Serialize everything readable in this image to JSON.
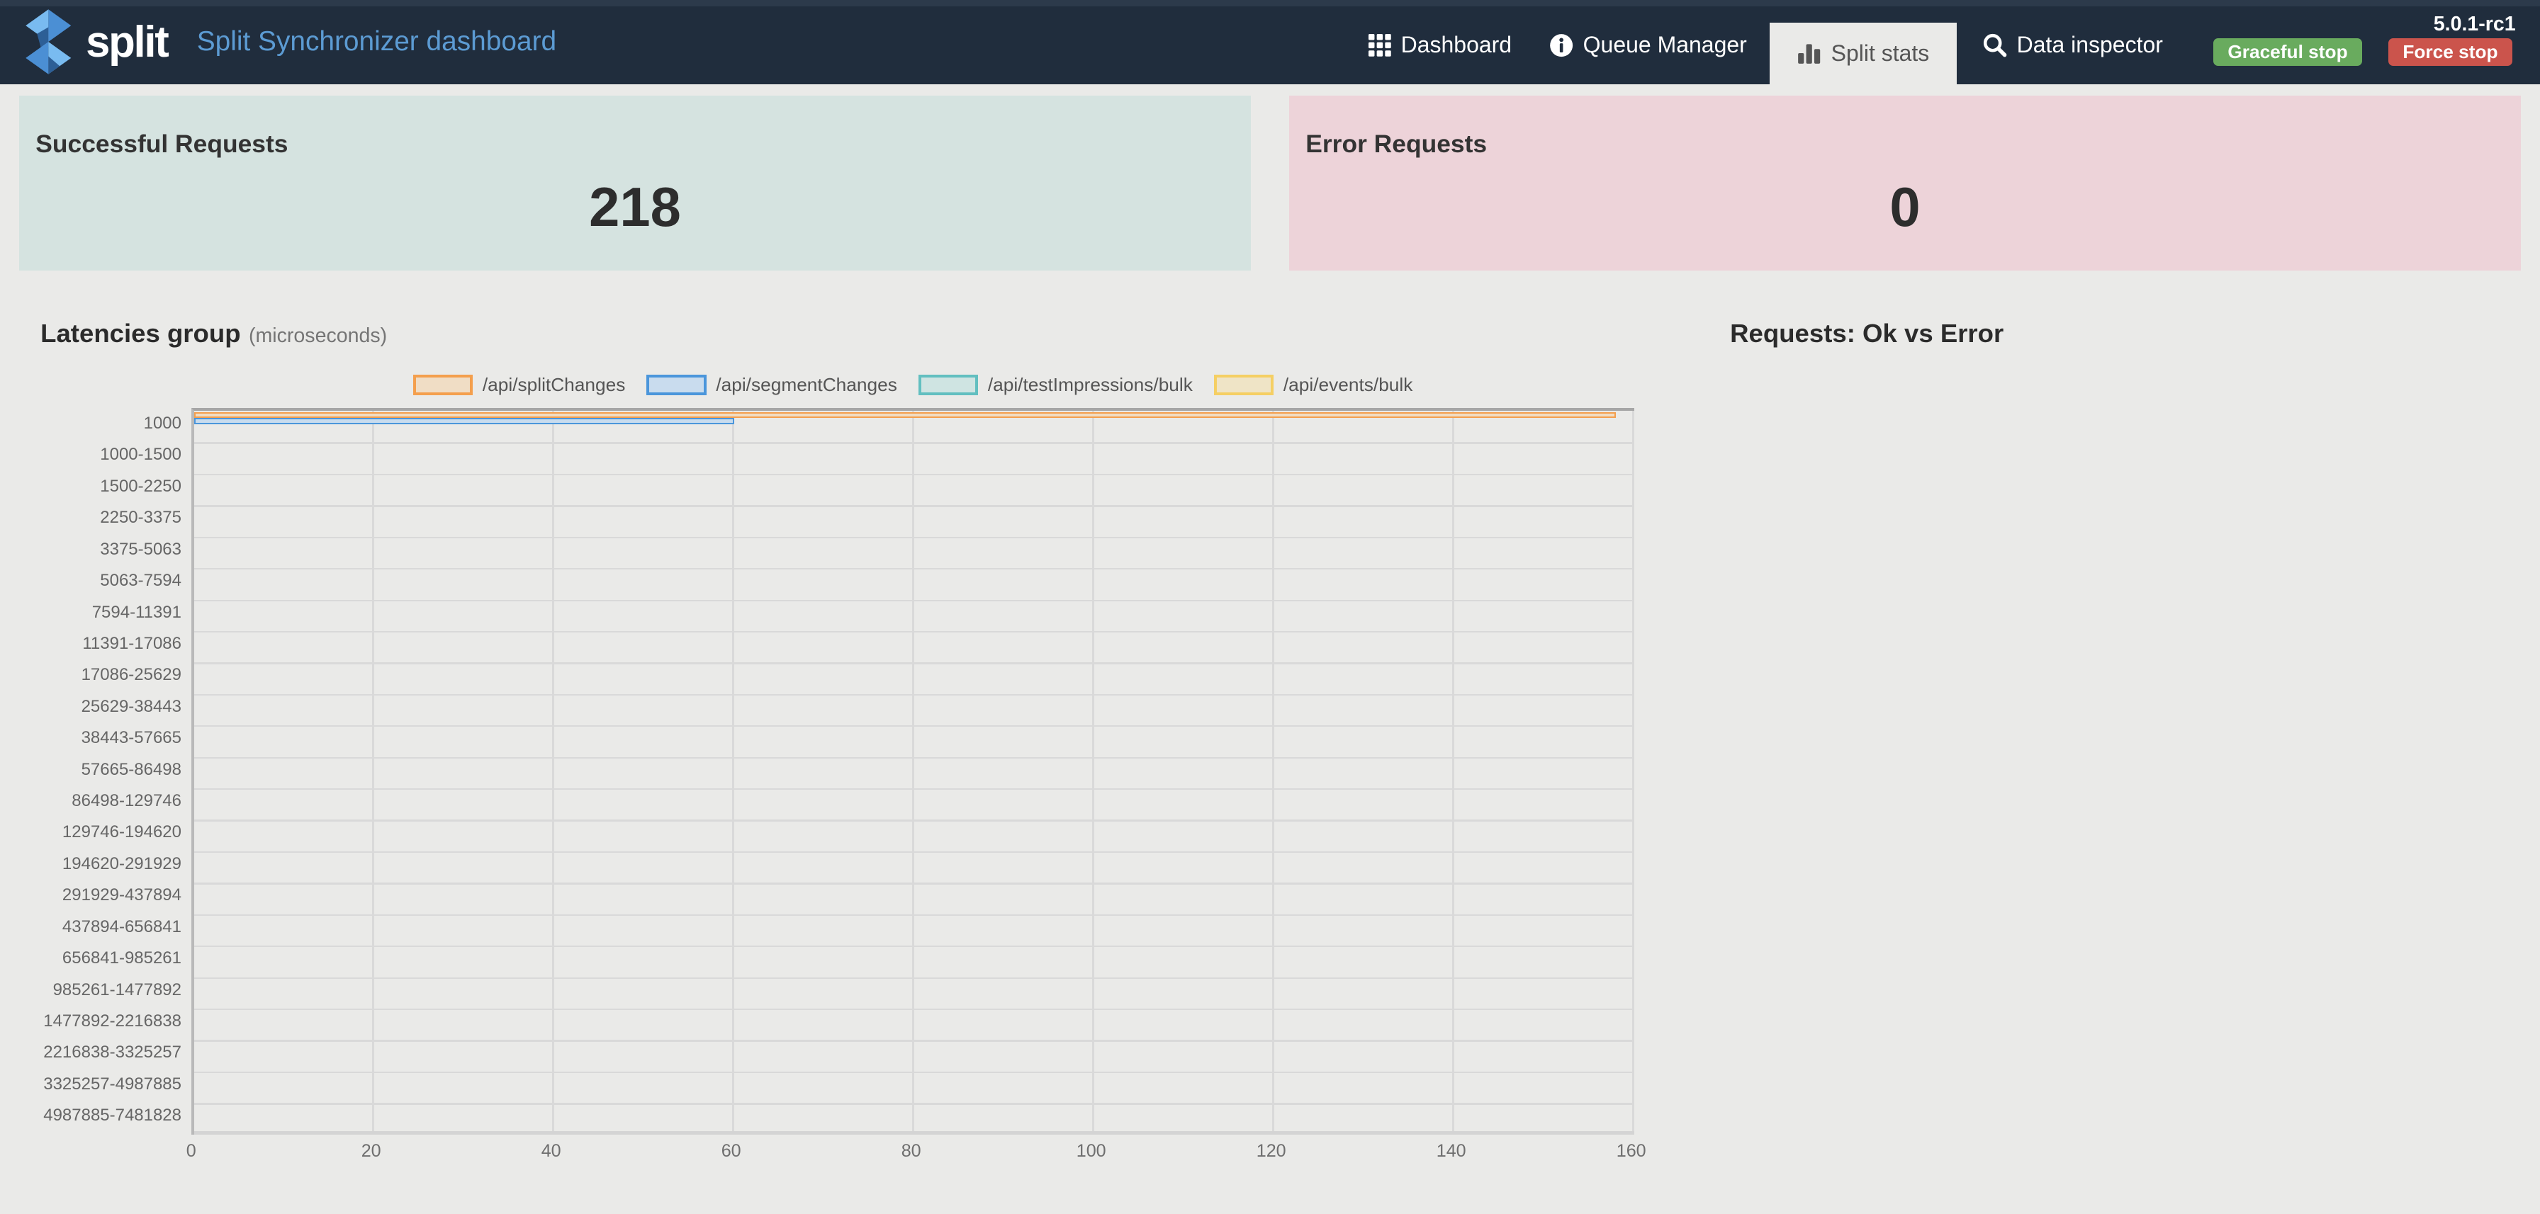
{
  "navbar": {
    "brand": "split",
    "title": "Split Synchronizer dashboard",
    "items": [
      {
        "label": "Dashboard",
        "icon": "grid-icon",
        "active": false
      },
      {
        "label": "Queue Manager",
        "icon": "info-icon",
        "active": false
      },
      {
        "label": "Split stats",
        "icon": "bar-chart-icon",
        "active": true
      },
      {
        "label": "Data inspector",
        "icon": "search-icon",
        "active": false
      }
    ],
    "buttons": [
      {
        "label": "Graceful stop",
        "color": "#69ab5e"
      },
      {
        "label": "Force stop",
        "color": "#cb544c"
      }
    ],
    "version": "5.0.1-rc1",
    "colors": {
      "background": "#202d3d",
      "title": "#5c9bd3"
    }
  },
  "cards": [
    {
      "title": "Successful Requests",
      "value": "218",
      "bg": "#d5e3e0"
    },
    {
      "title": "Error Requests",
      "value": "0",
      "bg": "#edd3d9"
    }
  ],
  "chart_data": [
    {
      "type": "bar",
      "orientation": "horizontal",
      "title": "Latencies group",
      "unit": "(microseconds)",
      "categories": [
        "1000",
        "1000-1500",
        "1500-2250",
        "2250-3375",
        "3375-5063",
        "5063-7594",
        "7594-11391",
        "11391-17086",
        "17086-25629",
        "25629-38443",
        "38443-57665",
        "57665-86498",
        "86498-129746",
        "129746-194620",
        "194620-291929",
        "291929-437894",
        "437894-656841",
        "656841-985261",
        "985261-1477892",
        "1477892-2216838",
        "2216838-3325257",
        "3325257-4987885",
        "4987885-7481828"
      ],
      "series": [
        {
          "name": "/api/splitChanges",
          "color": "#f49f4d",
          "fill": "#f0ddc5",
          "values": [
            158,
            0,
            0,
            0,
            0,
            0,
            0,
            0,
            0,
            0,
            0,
            0,
            0,
            0,
            0,
            0,
            0,
            0,
            0,
            0,
            0,
            0,
            0
          ]
        },
        {
          "name": "/api/segmentChanges",
          "color": "#4b96db",
          "fill": "#c9dcee",
          "values": [
            60,
            0,
            0,
            0,
            0,
            0,
            0,
            0,
            0,
            0,
            0,
            0,
            0,
            0,
            0,
            0,
            0,
            0,
            0,
            0,
            0,
            0,
            0
          ]
        },
        {
          "name": "/api/testImpressions/bulk",
          "color": "#62bfc0",
          "fill": "#cfe4e2",
          "values": [
            0,
            0,
            0,
            0,
            0,
            0,
            0,
            0,
            0,
            0,
            0,
            0,
            0,
            0,
            0,
            0,
            0,
            0,
            0,
            0,
            0,
            0,
            0
          ]
        },
        {
          "name": "/api/events/bulk",
          "color": "#f5cf63",
          "fill": "#efe4c6",
          "values": [
            0,
            0,
            0,
            0,
            0,
            0,
            0,
            0,
            0,
            0,
            0,
            0,
            0,
            0,
            0,
            0,
            0,
            0,
            0,
            0,
            0,
            0,
            0
          ]
        }
      ],
      "xlim": [
        0,
        160
      ],
      "x_ticks": [
        0,
        20,
        40,
        60,
        80,
        100,
        120,
        140,
        160
      ],
      "grid": true,
      "legend_position": "top"
    },
    {
      "type": "pie",
      "title": "Requests: Ok vs Error",
      "series": []
    }
  ]
}
